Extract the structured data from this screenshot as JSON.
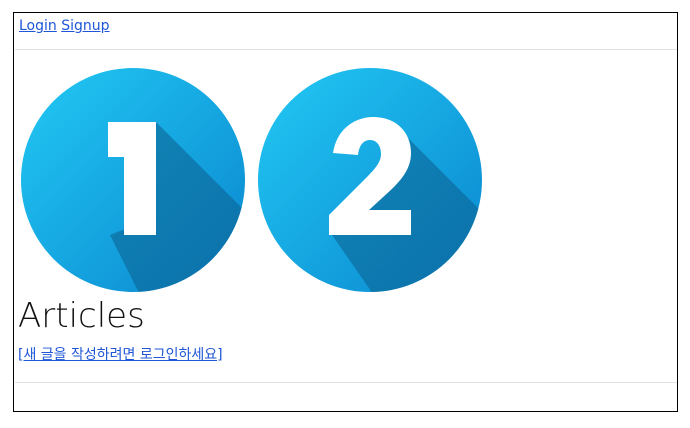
{
  "nav": {
    "login_label": "Login",
    "signup_label": "Signup"
  },
  "badges": [
    {
      "number": "1",
      "icon": "number-one-badge-icon"
    },
    {
      "number": "2",
      "icon": "number-two-badge-icon"
    }
  ],
  "main": {
    "heading": "Articles",
    "write_link": "[새 글을 작성하려면 로그인하세요]"
  },
  "colors": {
    "link": "#1e56d6",
    "badge_light": "#1cc3f2",
    "badge_dark": "#0a7fc7",
    "shadow": "#0b5f8c",
    "divider": "#e2e2e2"
  }
}
